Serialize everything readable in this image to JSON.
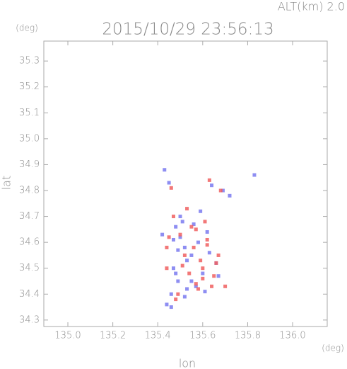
{
  "chart_data": {
    "type": "scatter",
    "title": "2015/10/29 23:56:13",
    "subtitle": "ALT(km) 2.0",
    "x_label": "lon",
    "y_label": "lat",
    "x_unit": "(deg)",
    "y_unit": "(deg)",
    "xlim": [
      134.893,
      136.154
    ],
    "ylim": [
      34.275,
      35.377
    ],
    "xticks": [
      {
        "value": 135.0,
        "label": "135.0"
      },
      135.2,
      135.4,
      135.6,
      135.8,
      {
        "value": 136.0,
        "label": "136.0"
      }
    ],
    "yticks": [
      34.3,
      34.4,
      34.5,
      34.6,
      34.7,
      34.8,
      34.9,
      {
        "value": 35.0,
        "label": "35.0"
      },
      35.1,
      35.2,
      35.3
    ],
    "series": [
      {
        "color": "#7a7af0",
        "x": [
          135.43,
          135.45,
          135.48,
          135.5,
          135.52,
          135.55,
          135.47,
          135.49,
          135.53,
          135.58,
          135.62,
          135.66,
          135.6,
          135.52,
          135.46,
          135.44,
          135.5,
          135.56,
          135.64,
          135.69,
          135.55,
          135.49,
          135.42,
          135.61,
          135.67,
          135.53,
          135.47,
          135.59,
          135.72,
          135.83,
          135.46,
          135.51,
          135.57,
          135.63,
          135.48
        ],
        "y": [
          34.88,
          34.83,
          34.66,
          34.62,
          34.58,
          34.55,
          34.5,
          34.45,
          34.42,
          34.6,
          34.64,
          34.52,
          34.48,
          34.39,
          34.4,
          34.36,
          34.7,
          34.67,
          34.82,
          34.8,
          34.45,
          34.57,
          34.63,
          34.41,
          34.47,
          34.53,
          34.61,
          34.72,
          34.78,
          34.86,
          34.35,
          34.68,
          34.43,
          34.56,
          34.48
        ]
      },
      {
        "color": "#f06060",
        "x": [
          135.44,
          135.5,
          135.57,
          135.62,
          135.66,
          135.54,
          135.6,
          135.47,
          135.52,
          135.64,
          135.58,
          135.45,
          135.63,
          135.68,
          135.56,
          135.51,
          135.61,
          135.49,
          135.65,
          135.59,
          135.53,
          135.7,
          135.46,
          135.62,
          135.57,
          135.48,
          135.67,
          135.55,
          135.44,
          135.6
        ],
        "y": [
          34.5,
          34.63,
          34.65,
          34.59,
          34.52,
          34.48,
          34.46,
          34.7,
          34.55,
          34.43,
          34.42,
          34.62,
          34.84,
          34.8,
          34.58,
          34.51,
          34.68,
          34.4,
          34.47,
          34.53,
          34.73,
          34.43,
          34.81,
          34.61,
          34.44,
          34.38,
          34.55,
          34.66,
          34.58,
          34.5
        ]
      }
    ]
  }
}
